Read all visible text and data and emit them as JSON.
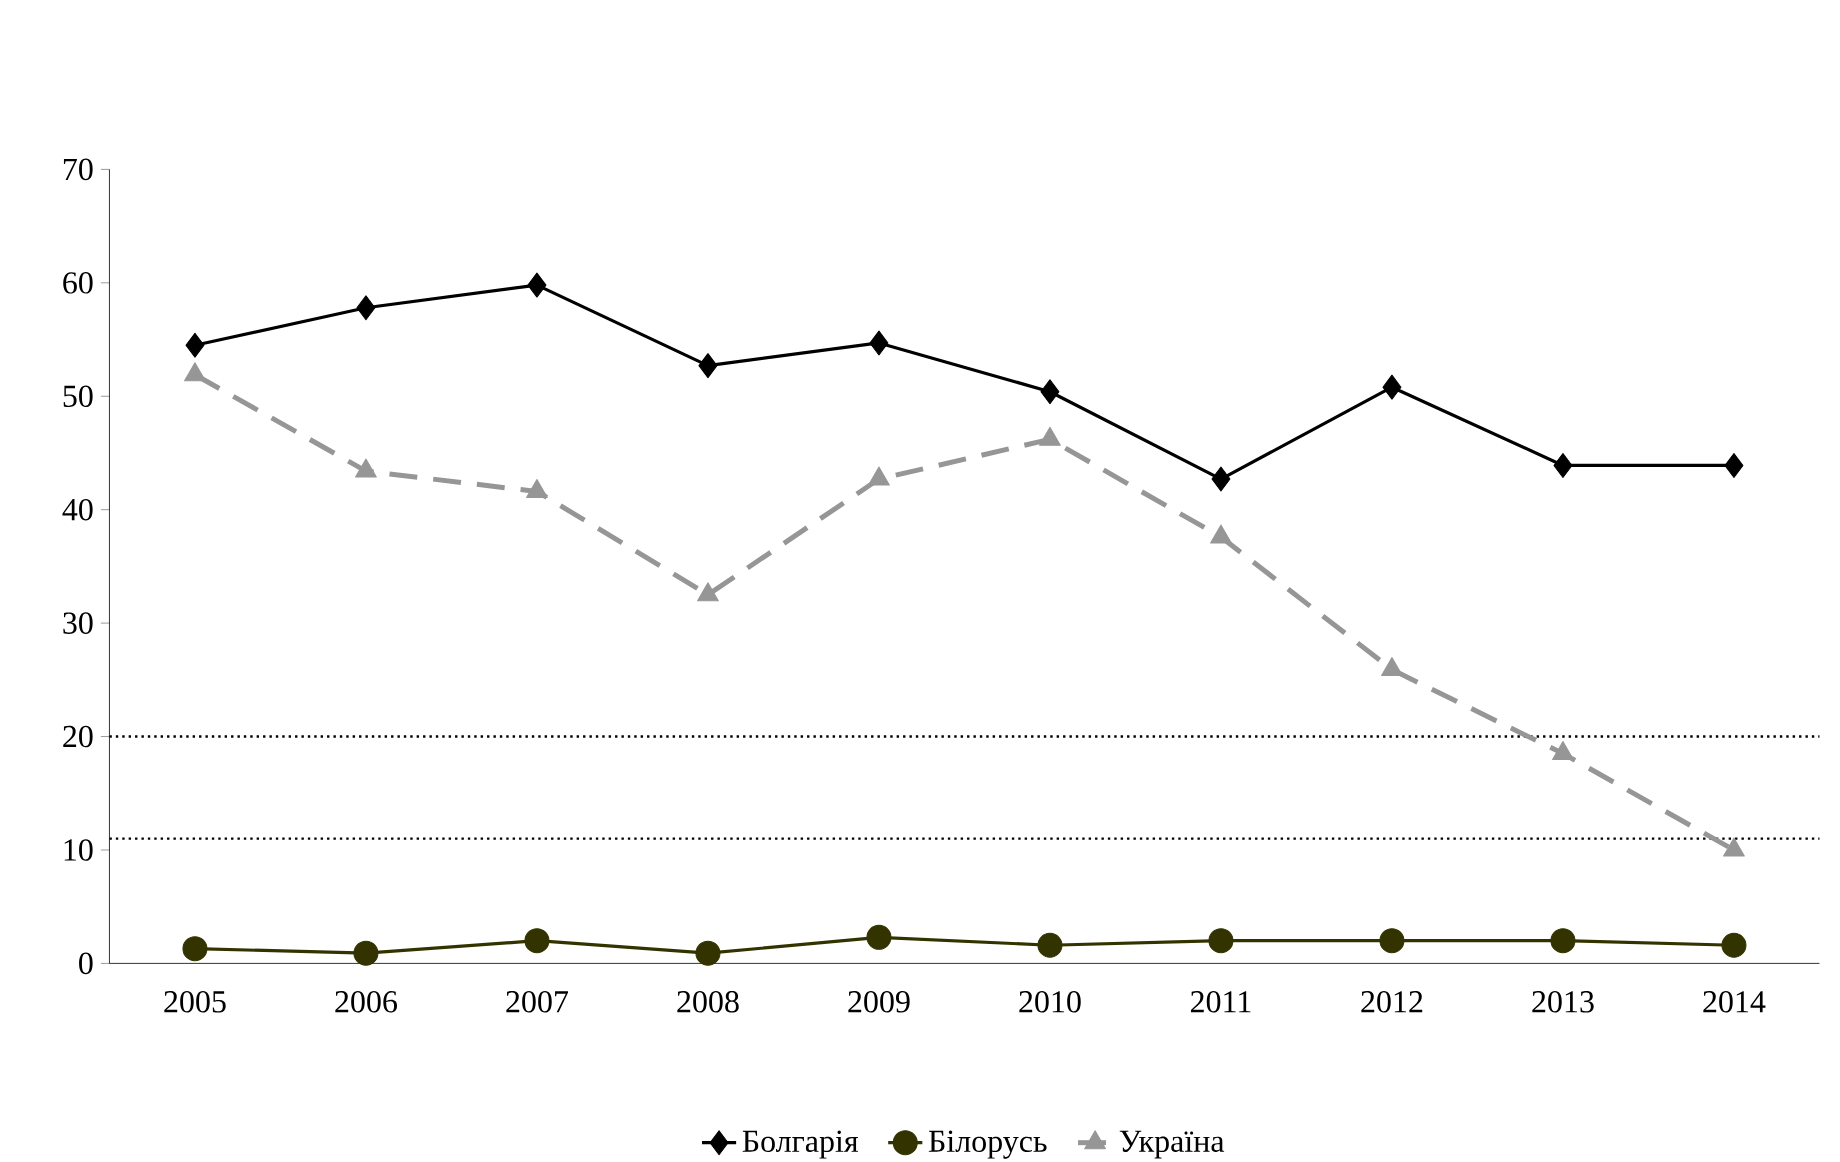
{
  "chart_data": {
    "type": "line",
    "categories": [
      "2005",
      "2006",
      "2007",
      "2008",
      "2009",
      "2010",
      "2011",
      "2012",
      "2013",
      "2014"
    ],
    "series": [
      {
        "name": "Болгарія",
        "color": "#000000",
        "marker": "diamond",
        "line_style": "solid",
        "values": [
          54.5,
          57.8,
          59.8,
          52.7,
          54.7,
          50.4,
          42.7,
          50.8,
          43.9,
          43.9
        ]
      },
      {
        "name": "Білорусь",
        "color": "#333300",
        "marker": "circle",
        "line_style": "solid",
        "values": [
          1.3,
          0.9,
          2,
          0.9,
          2.3,
          1.6,
          2,
          2,
          2,
          1.6
        ]
      },
      {
        "name": "Україна",
        "color": "#969696",
        "marker": "triangle",
        "line_style": "dashed",
        "values": [
          51.9,
          43.4,
          41.6,
          32.5,
          42.7,
          46.2,
          37.6,
          25.9,
          18.5,
          10
        ]
      }
    ],
    "ylim": [
      0,
      70
    ],
    "yticks": [
      0,
      10,
      20,
      30,
      40,
      50,
      60,
      70
    ],
    "grid": false,
    "legend": "bottom",
    "ref_lines": [
      {
        "axis": "y",
        "value": 20,
        "color": "#000000",
        "line_style": "dotted"
      },
      {
        "axis": "y",
        "value": 11,
        "color": "#000000",
        "line_style": "dotted"
      }
    ]
  }
}
